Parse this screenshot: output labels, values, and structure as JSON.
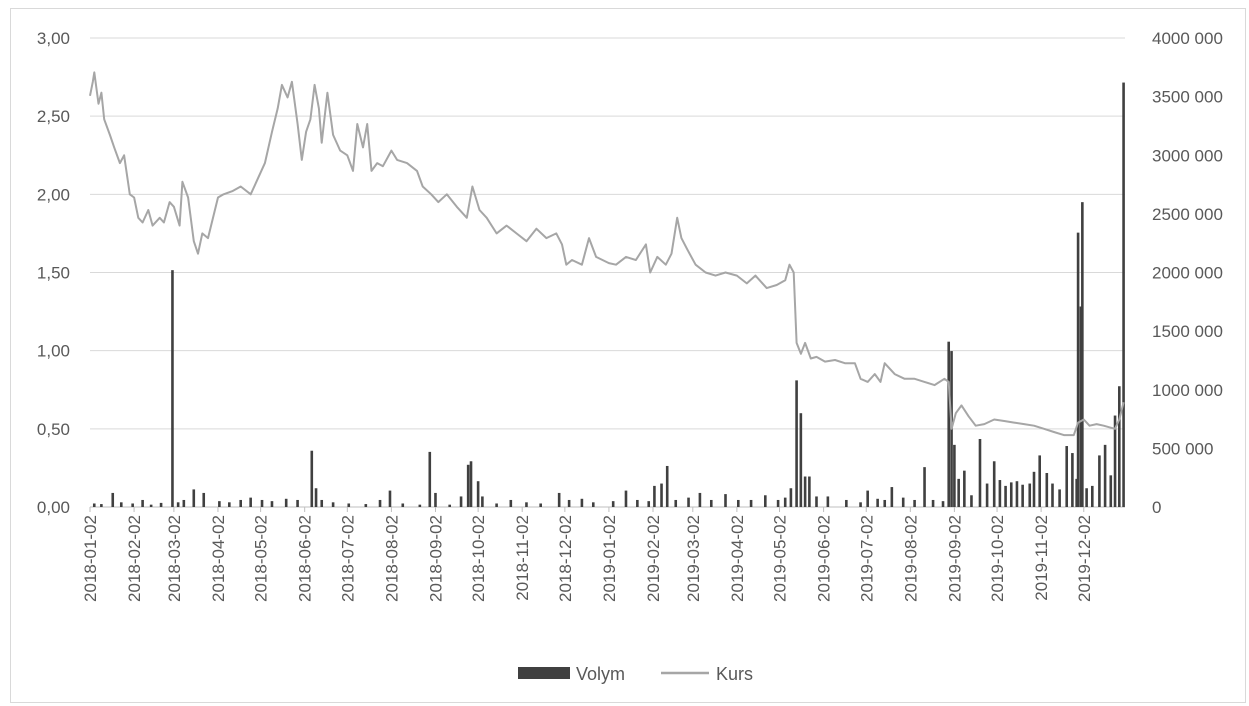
{
  "chart_data": {
    "type": "bar+line",
    "title": "",
    "legend_position": "bottom",
    "grid": true,
    "colors": {
      "volume": "#404040",
      "price": "#a6a6a6",
      "grid": "#d9d9d9",
      "text": "#595959"
    },
    "x_tick_labels": [
      "2018-01-02",
      "2018-02-02",
      "2018-03-02",
      "2018-04-02",
      "2018-05-02",
      "2018-06-02",
      "2018-07-02",
      "2018-08-02",
      "2018-09-02",
      "2018-10-02",
      "2018-11-02",
      "2018-12-02",
      "2019-01-02",
      "2019-02-02",
      "2019-03-02",
      "2019-04-02",
      "2019-05-02",
      "2019-06-02",
      "2019-07-02",
      "2019-08-02",
      "2019-09-02",
      "2019-10-02",
      "2019-11-02",
      "2019-12-02"
    ],
    "y_left": {
      "ylim": [
        0,
        3
      ],
      "tick_labels": [
        "0,00",
        "0,50",
        "1,00",
        "1,50",
        "2,00",
        "2,50",
        "3,00"
      ]
    },
    "y_right": {
      "ylim": [
        0,
        4000000
      ],
      "tick_labels": [
        "0",
        "500 000",
        "1000 000",
        "1500 000",
        "2000 000",
        "2500 000",
        "3000 000",
        "3500 000",
        "4000 000"
      ]
    },
    "series": [
      {
        "name": "Volym",
        "type": "bar",
        "axis": "right",
        "points": [
          [
            "2018-01-05",
            30000
          ],
          [
            "2018-01-10",
            25000
          ],
          [
            "2018-01-18",
            120000
          ],
          [
            "2018-01-24",
            40000
          ],
          [
            "2018-02-01",
            30000
          ],
          [
            "2018-02-08",
            60000
          ],
          [
            "2018-02-14",
            20000
          ],
          [
            "2018-02-21",
            35000
          ],
          [
            "2018-03-01",
            2020000
          ],
          [
            "2018-03-05",
            40000
          ],
          [
            "2018-03-09",
            60000
          ],
          [
            "2018-03-16",
            150000
          ],
          [
            "2018-03-23",
            120000
          ],
          [
            "2018-04-03",
            50000
          ],
          [
            "2018-04-10",
            40000
          ],
          [
            "2018-04-18",
            60000
          ],
          [
            "2018-04-25",
            80000
          ],
          [
            "2018-05-03",
            60000
          ],
          [
            "2018-05-10",
            50000
          ],
          [
            "2018-05-20",
            70000
          ],
          [
            "2018-05-28",
            60000
          ],
          [
            "2018-06-07",
            480000
          ],
          [
            "2018-06-10",
            160000
          ],
          [
            "2018-06-14",
            60000
          ],
          [
            "2018-06-22",
            40000
          ],
          [
            "2018-07-03",
            30000
          ],
          [
            "2018-07-15",
            25000
          ],
          [
            "2018-07-25",
            60000
          ],
          [
            "2018-08-01",
            140000
          ],
          [
            "2018-08-10",
            30000
          ],
          [
            "2018-08-22",
            20000
          ],
          [
            "2018-08-29",
            470000
          ],
          [
            "2018-09-02",
            120000
          ],
          [
            "2018-09-12",
            20000
          ],
          [
            "2018-09-20",
            90000
          ],
          [
            "2018-09-25",
            360000
          ],
          [
            "2018-09-27",
            390000
          ],
          [
            "2018-10-02",
            220000
          ],
          [
            "2018-10-05",
            90000
          ],
          [
            "2018-10-15",
            30000
          ],
          [
            "2018-10-25",
            60000
          ],
          [
            "2018-11-05",
            40000
          ],
          [
            "2018-11-15",
            30000
          ],
          [
            "2018-11-28",
            120000
          ],
          [
            "2018-12-05",
            60000
          ],
          [
            "2018-12-14",
            70000
          ],
          [
            "2018-12-22",
            40000
          ],
          [
            "2019-01-05",
            50000
          ],
          [
            "2019-01-14",
            140000
          ],
          [
            "2019-01-22",
            60000
          ],
          [
            "2019-01-30",
            50000
          ],
          [
            "2019-02-03",
            180000
          ],
          [
            "2019-02-08",
            200000
          ],
          [
            "2019-02-12",
            350000
          ],
          [
            "2019-02-18",
            60000
          ],
          [
            "2019-02-27",
            80000
          ],
          [
            "2019-03-07",
            120000
          ],
          [
            "2019-03-15",
            60000
          ],
          [
            "2019-03-25",
            110000
          ],
          [
            "2019-04-03",
            60000
          ],
          [
            "2019-04-12",
            60000
          ],
          [
            "2019-04-22",
            100000
          ],
          [
            "2019-05-01",
            60000
          ],
          [
            "2019-05-06",
            80000
          ],
          [
            "2019-05-10",
            160000
          ],
          [
            "2019-05-14",
            1080000
          ],
          [
            "2019-05-17",
            800000
          ],
          [
            "2019-05-20",
            260000
          ],
          [
            "2019-05-23",
            260000
          ],
          [
            "2019-05-28",
            90000
          ],
          [
            "2019-06-05",
            90000
          ],
          [
            "2019-06-18",
            60000
          ],
          [
            "2019-06-28",
            40000
          ],
          [
            "2019-07-03",
            140000
          ],
          [
            "2019-07-10",
            70000
          ],
          [
            "2019-07-15",
            60000
          ],
          [
            "2019-07-20",
            170000
          ],
          [
            "2019-07-28",
            80000
          ],
          [
            "2019-08-05",
            60000
          ],
          [
            "2019-08-12",
            340000
          ],
          [
            "2019-08-18",
            60000
          ],
          [
            "2019-08-25",
            50000
          ],
          [
            "2019-08-29",
            1410000
          ],
          [
            "2019-08-31",
            1330000
          ],
          [
            "2019-09-02",
            530000
          ],
          [
            "2019-09-05",
            240000
          ],
          [
            "2019-09-09",
            310000
          ],
          [
            "2019-09-14",
            100000
          ],
          [
            "2019-09-20",
            580000
          ],
          [
            "2019-09-25",
            200000
          ],
          [
            "2019-09-30",
            390000
          ],
          [
            "2019-10-04",
            230000
          ],
          [
            "2019-10-08",
            180000
          ],
          [
            "2019-10-12",
            210000
          ],
          [
            "2019-10-16",
            220000
          ],
          [
            "2019-10-20",
            190000
          ],
          [
            "2019-10-25",
            200000
          ],
          [
            "2019-10-28",
            300000
          ],
          [
            "2019-11-01",
            440000
          ],
          [
            "2019-11-06",
            290000
          ],
          [
            "2019-11-10",
            200000
          ],
          [
            "2019-11-15",
            150000
          ],
          [
            "2019-11-20",
            520000
          ],
          [
            "2019-11-24",
            460000
          ],
          [
            "2019-11-27",
            240000
          ],
          [
            "2019-11-28",
            2340000
          ],
          [
            "2019-11-30",
            1710000
          ],
          [
            "2019-12-01",
            2600000
          ],
          [
            "2019-12-04",
            160000
          ],
          [
            "2019-12-08",
            180000
          ],
          [
            "2019-12-13",
            440000
          ],
          [
            "2019-12-17",
            530000
          ],
          [
            "2019-12-21",
            270000
          ],
          [
            "2019-12-24",
            780000
          ],
          [
            "2019-12-27",
            1030000
          ],
          [
            "2019-12-30",
            3620000
          ]
        ]
      },
      {
        "name": "Kurs",
        "type": "line",
        "axis": "left",
        "points": [
          [
            "2018-01-02",
            2.63
          ],
          [
            "2018-01-04",
            2.72
          ],
          [
            "2018-01-05",
            2.78
          ],
          [
            "2018-01-08",
            2.58
          ],
          [
            "2018-01-10",
            2.65
          ],
          [
            "2018-01-12",
            2.48
          ],
          [
            "2018-01-16",
            2.38
          ],
          [
            "2018-01-19",
            2.3
          ],
          [
            "2018-01-23",
            2.2
          ],
          [
            "2018-01-26",
            2.25
          ],
          [
            "2018-01-30",
            2.0
          ],
          [
            "2018-02-02",
            1.98
          ],
          [
            "2018-02-05",
            1.85
          ],
          [
            "2018-02-08",
            1.82
          ],
          [
            "2018-02-12",
            1.9
          ],
          [
            "2018-02-15",
            1.8
          ],
          [
            "2018-02-20",
            1.85
          ],
          [
            "2018-02-23",
            1.82
          ],
          [
            "2018-02-27",
            1.95
          ],
          [
            "2018-03-02",
            1.92
          ],
          [
            "2018-03-06",
            1.8
          ],
          [
            "2018-03-08",
            2.08
          ],
          [
            "2018-03-12",
            1.98
          ],
          [
            "2018-03-16",
            1.7
          ],
          [
            "2018-03-19",
            1.62
          ],
          [
            "2018-03-22",
            1.75
          ],
          [
            "2018-03-26",
            1.72
          ],
          [
            "2018-04-02",
            1.98
          ],
          [
            "2018-04-06",
            2.0
          ],
          [
            "2018-04-12",
            2.02
          ],
          [
            "2018-04-18",
            2.05
          ],
          [
            "2018-04-25",
            2.0
          ],
          [
            "2018-04-30",
            2.1
          ],
          [
            "2018-05-05",
            2.2
          ],
          [
            "2018-05-10",
            2.4
          ],
          [
            "2018-05-14",
            2.55
          ],
          [
            "2018-05-17",
            2.7
          ],
          [
            "2018-05-21",
            2.62
          ],
          [
            "2018-05-24",
            2.72
          ],
          [
            "2018-05-28",
            2.45
          ],
          [
            "2018-05-31",
            2.22
          ],
          [
            "2018-06-03",
            2.4
          ],
          [
            "2018-06-06",
            2.48
          ],
          [
            "2018-06-09",
            2.7
          ],
          [
            "2018-06-12",
            2.55
          ],
          [
            "2018-06-14",
            2.33
          ],
          [
            "2018-06-18",
            2.65
          ],
          [
            "2018-06-22",
            2.38
          ],
          [
            "2018-06-27",
            2.28
          ],
          [
            "2018-07-02",
            2.25
          ],
          [
            "2018-07-06",
            2.15
          ],
          [
            "2018-07-09",
            2.45
          ],
          [
            "2018-07-13",
            2.3
          ],
          [
            "2018-07-16",
            2.45
          ],
          [
            "2018-07-19",
            2.15
          ],
          [
            "2018-07-23",
            2.2
          ],
          [
            "2018-07-27",
            2.18
          ],
          [
            "2018-08-02",
            2.28
          ],
          [
            "2018-08-06",
            2.22
          ],
          [
            "2018-08-13",
            2.2
          ],
          [
            "2018-08-20",
            2.15
          ],
          [
            "2018-08-24",
            2.05
          ],
          [
            "2018-08-30",
            2.0
          ],
          [
            "2018-09-04",
            1.95
          ],
          [
            "2018-09-10",
            2.0
          ],
          [
            "2018-09-17",
            1.92
          ],
          [
            "2018-09-24",
            1.85
          ],
          [
            "2018-09-28",
            2.05
          ],
          [
            "2018-10-03",
            1.9
          ],
          [
            "2018-10-08",
            1.85
          ],
          [
            "2018-10-15",
            1.75
          ],
          [
            "2018-10-22",
            1.8
          ],
          [
            "2018-10-29",
            1.75
          ],
          [
            "2018-11-05",
            1.7
          ],
          [
            "2018-11-12",
            1.78
          ],
          [
            "2018-11-19",
            1.72
          ],
          [
            "2018-11-26",
            1.75
          ],
          [
            "2018-11-30",
            1.68
          ],
          [
            "2018-12-03",
            1.55
          ],
          [
            "2018-12-07",
            1.58
          ],
          [
            "2018-12-14",
            1.55
          ],
          [
            "2018-12-19",
            1.72
          ],
          [
            "2018-12-24",
            1.6
          ],
          [
            "2019-01-02",
            1.56
          ],
          [
            "2019-01-07",
            1.55
          ],
          [
            "2019-01-14",
            1.6
          ],
          [
            "2019-01-21",
            1.58
          ],
          [
            "2019-01-28",
            1.68
          ],
          [
            "2019-01-31",
            1.5
          ],
          [
            "2019-02-05",
            1.6
          ],
          [
            "2019-02-11",
            1.55
          ],
          [
            "2019-02-15",
            1.62
          ],
          [
            "2019-02-19",
            1.85
          ],
          [
            "2019-02-22",
            1.72
          ],
          [
            "2019-02-26",
            1.65
          ],
          [
            "2019-03-04",
            1.55
          ],
          [
            "2019-03-11",
            1.5
          ],
          [
            "2019-03-18",
            1.48
          ],
          [
            "2019-03-25",
            1.5
          ],
          [
            "2019-04-02",
            1.48
          ],
          [
            "2019-04-09",
            1.43
          ],
          [
            "2019-04-15",
            1.48
          ],
          [
            "2019-04-23",
            1.4
          ],
          [
            "2019-04-30",
            1.42
          ],
          [
            "2019-05-06",
            1.45
          ],
          [
            "2019-05-09",
            1.55
          ],
          [
            "2019-05-12",
            1.5
          ],
          [
            "2019-05-14",
            1.05
          ],
          [
            "2019-05-17",
            0.98
          ],
          [
            "2019-05-20",
            1.05
          ],
          [
            "2019-05-24",
            0.95
          ],
          [
            "2019-05-28",
            0.96
          ],
          [
            "2019-06-03",
            0.93
          ],
          [
            "2019-06-10",
            0.94
          ],
          [
            "2019-06-17",
            0.92
          ],
          [
            "2019-06-24",
            0.92
          ],
          [
            "2019-06-28",
            0.82
          ],
          [
            "2019-07-03",
            0.8
          ],
          [
            "2019-07-08",
            0.85
          ],
          [
            "2019-07-12",
            0.8
          ],
          [
            "2019-07-15",
            0.92
          ],
          [
            "2019-07-22",
            0.85
          ],
          [
            "2019-07-29",
            0.82
          ],
          [
            "2019-08-05",
            0.82
          ],
          [
            "2019-08-12",
            0.8
          ],
          [
            "2019-08-19",
            0.78
          ],
          [
            "2019-08-26",
            0.82
          ],
          [
            "2019-08-29",
            0.8
          ],
          [
            "2019-08-31",
            0.5
          ],
          [
            "2019-09-03",
            0.6
          ],
          [
            "2019-09-07",
            0.65
          ],
          [
            "2019-09-12",
            0.58
          ],
          [
            "2019-09-17",
            0.52
          ],
          [
            "2019-09-23",
            0.53
          ],
          [
            "2019-09-30",
            0.56
          ],
          [
            "2019-10-07",
            0.55
          ],
          [
            "2019-10-14",
            0.54
          ],
          [
            "2019-10-21",
            0.53
          ],
          [
            "2019-10-28",
            0.52
          ],
          [
            "2019-11-04",
            0.5
          ],
          [
            "2019-11-11",
            0.48
          ],
          [
            "2019-11-18",
            0.46
          ],
          [
            "2019-11-25",
            0.46
          ],
          [
            "2019-11-28",
            0.54
          ],
          [
            "2019-12-02",
            0.56
          ],
          [
            "2019-12-06",
            0.52
          ],
          [
            "2019-12-11",
            0.53
          ],
          [
            "2019-12-16",
            0.52
          ],
          [
            "2019-12-20",
            0.51
          ],
          [
            "2019-12-24",
            0.5
          ],
          [
            "2019-12-27",
            0.56
          ],
          [
            "2019-12-30",
            0.67
          ]
        ]
      }
    ]
  }
}
